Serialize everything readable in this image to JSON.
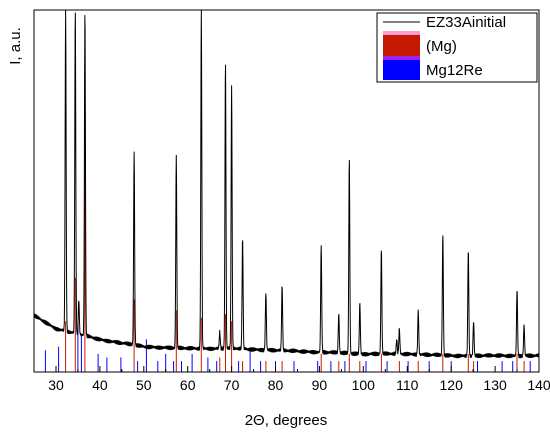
{
  "chart_data": {
    "type": "line",
    "xlabel": "2Θ, degrees",
    "ylabel": "I, a.u.",
    "xlim": [
      25,
      140
    ],
    "ylim": [
      0,
      100
    ],
    "x_ticks": [
      "30",
      "40",
      "50",
      "60",
      "70",
      "80",
      "90",
      "100",
      "110",
      "120",
      "130",
      "140"
    ],
    "legend_position": "top-right",
    "series": [
      {
        "name": "EZ33Ainitial",
        "kind": "diffraction-pattern",
        "color": "#000000",
        "background": [
          [
            25,
            15.6
          ],
          [
            30,
            12.0
          ],
          [
            40,
            9.0
          ],
          [
            50,
            7.0
          ],
          [
            60,
            6.5
          ],
          [
            70,
            6.5
          ],
          [
            80,
            6.0
          ],
          [
            90,
            5.5
          ],
          [
            100,
            5.0
          ],
          [
            110,
            5.0
          ],
          [
            120,
            4.5
          ],
          [
            130,
            4.5
          ],
          [
            140,
            4.5
          ]
        ],
        "peaks": [
          {
            "x": 28.5,
            "y": 7.0
          },
          {
            "x": 32.2,
            "y": 100
          },
          {
            "x": 34.4,
            "y": 100
          },
          {
            "x": 35.2,
            "y": 20.0
          },
          {
            "x": 36.6,
            "y": 100
          },
          {
            "x": 47.8,
            "y": 61.0
          },
          {
            "x": 51.0,
            "y": 3.0
          },
          {
            "x": 57.4,
            "y": 60.0
          },
          {
            "x": 63.1,
            "y": 100
          },
          {
            "x": 67.3,
            "y": 11.0
          },
          {
            "x": 68.6,
            "y": 86.0
          },
          {
            "x": 70.0,
            "y": 79.0
          },
          {
            "x": 72.5,
            "y": 37.0
          },
          {
            "x": 77.8,
            "y": 22.0
          },
          {
            "x": 81.5,
            "y": 24.0
          },
          {
            "x": 90.4,
            "y": 35.0
          },
          {
            "x": 94.4,
            "y": 16.0
          },
          {
            "x": 96.8,
            "y": 59.0
          },
          {
            "x": 99.2,
            "y": 19.0
          },
          {
            "x": 104.1,
            "y": 34.0
          },
          {
            "x": 107.6,
            "y": 9.0
          },
          {
            "x": 108.2,
            "y": 12.0
          },
          {
            "x": 112.5,
            "y": 17.0
          },
          {
            "x": 118.1,
            "y": 38.0
          },
          {
            "x": 123.9,
            "y": 34.0
          },
          {
            "x": 125.1,
            "y": 14.0
          },
          {
            "x": 135.0,
            "y": 23.0
          },
          {
            "x": 136.6,
            "y": 13.0
          }
        ]
      },
      {
        "name": "(Mg)",
        "kind": "reference-lines",
        "color": "#c41a00",
        "lines": [
          {
            "x": 32.2,
            "y": 14
          },
          {
            "x": 34.4,
            "y": 26
          },
          {
            "x": 36.6,
            "y": 62
          },
          {
            "x": 47.8,
            "y": 20
          },
          {
            "x": 57.4,
            "y": 17
          },
          {
            "x": 63.1,
            "y": 15
          },
          {
            "x": 67.3,
            "y": 4
          },
          {
            "x": 68.6,
            "y": 16
          },
          {
            "x": 70.0,
            "y": 14
          },
          {
            "x": 72.5,
            "y": 3
          },
          {
            "x": 77.8,
            "y": 3
          },
          {
            "x": 81.5,
            "y": 3
          },
          {
            "x": 90.4,
            "y": 5
          },
          {
            "x": 94.4,
            "y": 3
          },
          {
            "x": 96.8,
            "y": 5
          },
          {
            "x": 99.2,
            "y": 3
          },
          {
            "x": 104.1,
            "y": 5
          },
          {
            "x": 108.2,
            "y": 3
          },
          {
            "x": 112.5,
            "y": 3
          },
          {
            "x": 118.1,
            "y": 5
          },
          {
            "x": 123.9,
            "y": 5
          },
          {
            "x": 125.1,
            "y": 3
          },
          {
            "x": 135.0,
            "y": 5
          },
          {
            "x": 136.6,
            "y": 3
          }
        ]
      },
      {
        "name": "Mg12Re",
        "kind": "reference-lines",
        "color": "#0000ff",
        "lines": [
          {
            "x": 27.6,
            "y": 6
          },
          {
            "x": 30.6,
            "y": 7
          },
          {
            "x": 35.0,
            "y": 13
          },
          {
            "x": 35.8,
            "y": 10
          },
          {
            "x": 39.6,
            "y": 5
          },
          {
            "x": 41.6,
            "y": 4
          },
          {
            "x": 44.8,
            "y": 4
          },
          {
            "x": 48.6,
            "y": 3
          },
          {
            "x": 50.6,
            "y": 9
          },
          {
            "x": 53.2,
            "y": 3
          },
          {
            "x": 55.0,
            "y": 5
          },
          {
            "x": 56.8,
            "y": 3
          },
          {
            "x": 58.6,
            "y": 3
          },
          {
            "x": 61.0,
            "y": 5
          },
          {
            "x": 64.6,
            "y": 4
          },
          {
            "x": 66.6,
            "y": 3
          },
          {
            "x": 71.6,
            "y": 3
          },
          {
            "x": 74.2,
            "y": 6
          },
          {
            "x": 76.6,
            "y": 3
          },
          {
            "x": 80.0,
            "y": 3
          },
          {
            "x": 84.2,
            "y": 3
          },
          {
            "x": 89.6,
            "y": 3
          },
          {
            "x": 92.6,
            "y": 3
          },
          {
            "x": 95.8,
            "y": 3
          },
          {
            "x": 100.6,
            "y": 3
          },
          {
            "x": 105.4,
            "y": 3
          },
          {
            "x": 110.2,
            "y": 3
          },
          {
            "x": 115.0,
            "y": 3
          },
          {
            "x": 120.0,
            "y": 3
          },
          {
            "x": 126.0,
            "y": 3
          },
          {
            "x": 131.6,
            "y": 3
          },
          {
            "x": 134.0,
            "y": 3
          },
          {
            "x": 138.0,
            "y": 3
          }
        ]
      }
    ]
  }
}
